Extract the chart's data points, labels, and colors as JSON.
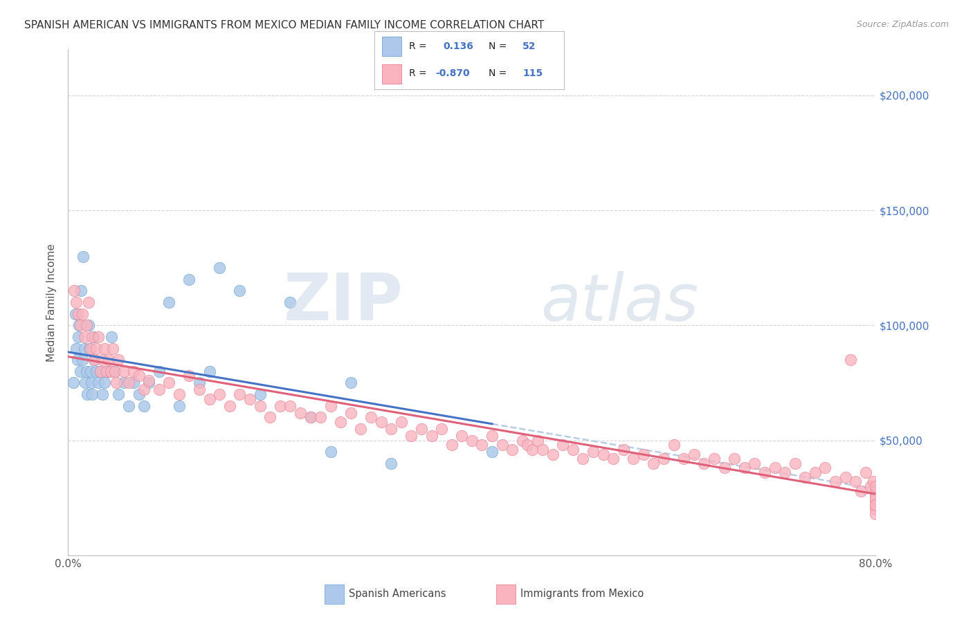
{
  "title": "SPANISH AMERICAN VS IMMIGRANTS FROM MEXICO MEDIAN FAMILY INCOME CORRELATION CHART",
  "source": "Source: ZipAtlas.com",
  "ylabel": "Median Family Income",
  "xlim": [
    0.0,
    0.8
  ],
  "ylim": [
    0,
    220000
  ],
  "blue_R": "0.136",
  "blue_N": "52",
  "pink_R": "-0.870",
  "pink_N": "115",
  "blue_fill": "#adc8ea",
  "blue_edge": "#7aaad4",
  "blue_line": "#4472c4",
  "blue_dash": "#b8cce4",
  "pink_fill": "#f9b4c0",
  "pink_edge": "#e88898",
  "pink_line": "#e0607a",
  "right_tick_color": "#4472c4",
  "title_color": "#333333",
  "source_color": "#999999",
  "grid_color": "#d4d4d4",
  "background": "#ffffff",
  "legend_label_blue": "Spanish Americans",
  "legend_label_pink": "Immigrants from Mexico",
  "blue_x": [
    0.005,
    0.007,
    0.008,
    0.009,
    0.01,
    0.011,
    0.012,
    0.013,
    0.014,
    0.015,
    0.016,
    0.017,
    0.018,
    0.019,
    0.02,
    0.021,
    0.022,
    0.023,
    0.024,
    0.025,
    0.026,
    0.028,
    0.03,
    0.032,
    0.034,
    0.036,
    0.038,
    0.04,
    0.043,
    0.046,
    0.05,
    0.055,
    0.06,
    0.065,
    0.07,
    0.075,
    0.08,
    0.09,
    0.1,
    0.11,
    0.12,
    0.13,
    0.14,
    0.15,
    0.17,
    0.19,
    0.22,
    0.24,
    0.26,
    0.28,
    0.32,
    0.42
  ],
  "blue_y": [
    75000,
    105000,
    90000,
    85000,
    95000,
    100000,
    80000,
    115000,
    85000,
    130000,
    90000,
    75000,
    80000,
    70000,
    100000,
    90000,
    80000,
    75000,
    70000,
    95000,
    85000,
    80000,
    75000,
    80000,
    70000,
    75000,
    80000,
    80000,
    95000,
    80000,
    70000,
    75000,
    65000,
    75000,
    70000,
    65000,
    75000,
    80000,
    110000,
    65000,
    120000,
    75000,
    80000,
    125000,
    115000,
    70000,
    110000,
    60000,
    45000,
    75000,
    40000,
    45000
  ],
  "pink_x": [
    0.006,
    0.008,
    0.01,
    0.012,
    0.014,
    0.016,
    0.018,
    0.02,
    0.022,
    0.024,
    0.026,
    0.028,
    0.03,
    0.032,
    0.034,
    0.036,
    0.038,
    0.04,
    0.042,
    0.044,
    0.046,
    0.048,
    0.05,
    0.055,
    0.06,
    0.065,
    0.07,
    0.075,
    0.08,
    0.09,
    0.1,
    0.11,
    0.12,
    0.13,
    0.14,
    0.15,
    0.16,
    0.17,
    0.18,
    0.19,
    0.2,
    0.21,
    0.22,
    0.23,
    0.24,
    0.25,
    0.26,
    0.27,
    0.28,
    0.29,
    0.3,
    0.31,
    0.32,
    0.33,
    0.34,
    0.35,
    0.36,
    0.37,
    0.38,
    0.39,
    0.4,
    0.41,
    0.42,
    0.43,
    0.44,
    0.45,
    0.455,
    0.46,
    0.465,
    0.47,
    0.48,
    0.49,
    0.5,
    0.51,
    0.52,
    0.53,
    0.54,
    0.55,
    0.56,
    0.57,
    0.58,
    0.59,
    0.6,
    0.61,
    0.62,
    0.63,
    0.64,
    0.65,
    0.66,
    0.67,
    0.68,
    0.69,
    0.7,
    0.71,
    0.72,
    0.73,
    0.74,
    0.75,
    0.76,
    0.77,
    0.775,
    0.78,
    0.785,
    0.79,
    0.795,
    0.798,
    0.8,
    0.8,
    0.8,
    0.8,
    0.8,
    0.8,
    0.8,
    0.8,
    0.8
  ],
  "pink_y": [
    115000,
    110000,
    105000,
    100000,
    105000,
    95000,
    100000,
    110000,
    90000,
    95000,
    85000,
    90000,
    95000,
    80000,
    85000,
    90000,
    80000,
    85000,
    80000,
    90000,
    80000,
    75000,
    85000,
    80000,
    75000,
    80000,
    78000,
    72000,
    76000,
    72000,
    75000,
    70000,
    78000,
    72000,
    68000,
    70000,
    65000,
    70000,
    68000,
    65000,
    60000,
    65000,
    65000,
    62000,
    60000,
    60000,
    65000,
    58000,
    62000,
    55000,
    60000,
    58000,
    55000,
    58000,
    52000,
    55000,
    52000,
    55000,
    48000,
    52000,
    50000,
    48000,
    52000,
    48000,
    46000,
    50000,
    48000,
    46000,
    50000,
    46000,
    44000,
    48000,
    46000,
    42000,
    45000,
    44000,
    42000,
    46000,
    42000,
    44000,
    40000,
    42000,
    48000,
    42000,
    44000,
    40000,
    42000,
    38000,
    42000,
    38000,
    40000,
    36000,
    38000,
    36000,
    40000,
    34000,
    36000,
    38000,
    32000,
    34000,
    85000,
    32000,
    28000,
    36000,
    30000,
    32000,
    28000,
    24000,
    26000,
    22000,
    30000,
    20000,
    25000,
    18000,
    22000
  ]
}
